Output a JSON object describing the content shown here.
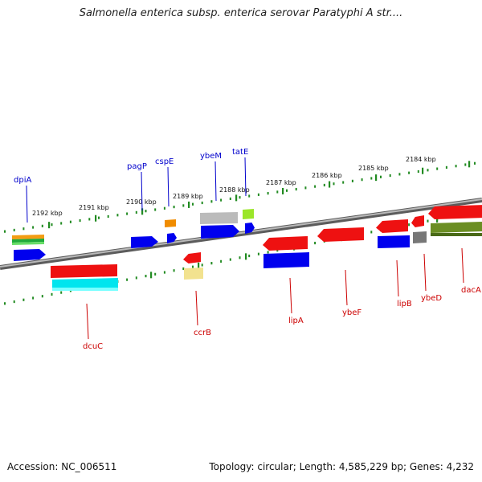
{
  "title": "Salmonella enterica subsp. enterica serovar Paratyphi A str....",
  "footer": {
    "accession": "Accession: NC_006511",
    "summary": "Topology: circular; Length: 4,585,229 bp; Genes: 4,232"
  },
  "colors": {
    "forward_label": "#0000cc",
    "reverse_label": "#cc0000",
    "backbone": "#808080",
    "tick": "#228b22"
  },
  "kbp_labels": [
    "2192 kbp",
    "2191 kbp",
    "2190 kbp",
    "2189 kbp",
    "2188 kbp",
    "2187 kbp",
    "2186 kbp",
    "2185 kbp",
    "2184 kbp"
  ],
  "genes": [
    {
      "name": "dpiA",
      "strand": "forward"
    },
    {
      "name": "pagP",
      "strand": "forward"
    },
    {
      "name": "cspE",
      "strand": "forward"
    },
    {
      "name": "ybeM",
      "strand": "forward"
    },
    {
      "name": "tatE",
      "strand": "forward"
    },
    {
      "name": "dcuC",
      "strand": "reverse"
    },
    {
      "name": "ccrB",
      "strand": "reverse"
    },
    {
      "name": "lipA",
      "strand": "reverse"
    },
    {
      "name": "ybeF",
      "strand": "reverse"
    },
    {
      "name": "lipB",
      "strand": "reverse"
    },
    {
      "name": "ybeD",
      "strand": "reverse"
    },
    {
      "name": "dacA",
      "strand": "reverse"
    }
  ]
}
